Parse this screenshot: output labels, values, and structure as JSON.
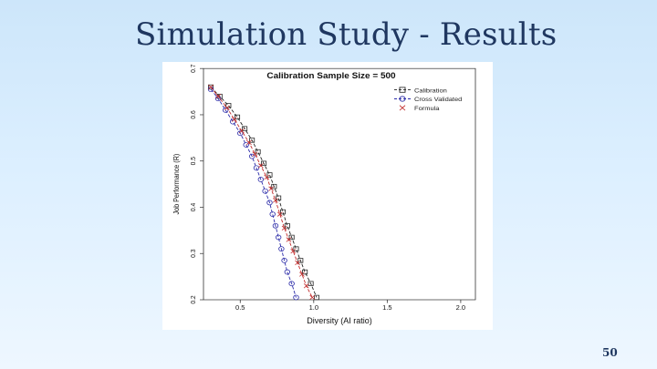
{
  "slide": {
    "title": "Simulation Study - Results",
    "page_number": "50"
  },
  "colors": {
    "calibration": "#222222",
    "cross_validated": "#2a2aa8",
    "formula": "#c02828",
    "axis": "#333333"
  },
  "chart_data": {
    "type": "line",
    "title": "Calibration Sample Size = 500",
    "xlabel": "Diversity (AI ratio)",
    "ylabel": "Job Performance (R)",
    "xlim": [
      0.25,
      2.1
    ],
    "ylim": [
      0.2,
      0.7
    ],
    "xticks": [
      "0.5",
      "1.0",
      "1.5",
      "2.0"
    ],
    "xtick_values": [
      0.5,
      1.0,
      1.5,
      2.0
    ],
    "yticks": [
      "0.2",
      "0.3",
      "0.4",
      "0.5",
      "0.6",
      "0.7"
    ],
    "ytick_values": [
      0.2,
      0.3,
      0.4,
      0.5,
      0.6,
      0.7
    ],
    "legend": [
      {
        "name": "Calibration",
        "marker": "square"
      },
      {
        "name": "Cross Validated",
        "marker": "circle"
      },
      {
        "name": "Formula",
        "marker": "x"
      }
    ],
    "legend_position": "top-right",
    "series": [
      {
        "name": "Calibration",
        "marker": "square",
        "x": [
          0.3,
          0.36,
          0.42,
          0.48,
          0.53,
          0.58,
          0.62,
          0.66,
          0.7,
          0.73,
          0.76,
          0.79,
          0.82,
          0.85,
          0.88,
          0.91,
          0.94,
          0.98,
          1.02
        ],
        "y": [
          0.66,
          0.64,
          0.62,
          0.595,
          0.57,
          0.545,
          0.52,
          0.495,
          0.47,
          0.445,
          0.42,
          0.39,
          0.36,
          0.335,
          0.31,
          0.285,
          0.26,
          0.235,
          0.205
        ]
      },
      {
        "name": "Cross Validated",
        "marker": "circle",
        "x": [
          0.3,
          0.35,
          0.4,
          0.45,
          0.5,
          0.54,
          0.58,
          0.61,
          0.64,
          0.67,
          0.7,
          0.72,
          0.74,
          0.76,
          0.78,
          0.8,
          0.82,
          0.85,
          0.88
        ],
        "y": [
          0.655,
          0.635,
          0.61,
          0.585,
          0.56,
          0.535,
          0.51,
          0.485,
          0.46,
          0.435,
          0.41,
          0.385,
          0.36,
          0.335,
          0.31,
          0.285,
          0.26,
          0.235,
          0.205
        ]
      },
      {
        "name": "Formula",
        "marker": "x",
        "x": [
          0.3,
          0.35,
          0.41,
          0.46,
          0.51,
          0.56,
          0.6,
          0.64,
          0.68,
          0.71,
          0.74,
          0.77,
          0.8,
          0.83,
          0.86,
          0.89,
          0.92,
          0.95,
          0.99
        ],
        "y": [
          0.66,
          0.64,
          0.615,
          0.59,
          0.565,
          0.54,
          0.515,
          0.49,
          0.465,
          0.44,
          0.415,
          0.385,
          0.355,
          0.33,
          0.305,
          0.28,
          0.255,
          0.23,
          0.205
        ]
      }
    ]
  }
}
